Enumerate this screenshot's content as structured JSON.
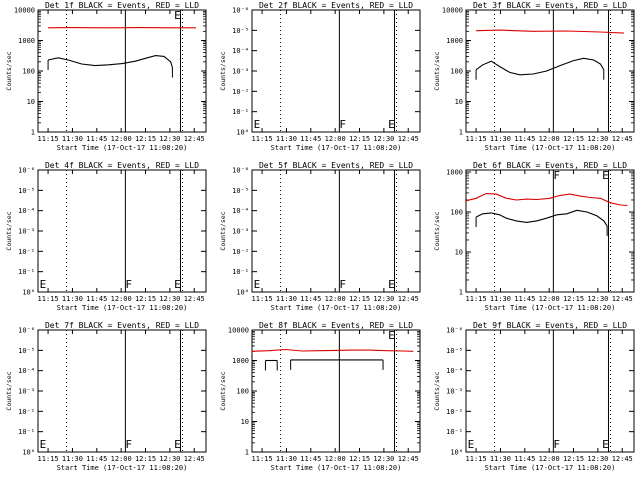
{
  "colors": {
    "events": "#000000",
    "lld": "#dd0000",
    "background": "#ffffff"
  },
  "x_tick_labels": [
    "11:15",
    "11:30",
    "11:45",
    "12:00",
    "12:15",
    "12:30",
    "12:45"
  ],
  "x_axis_label": "Start Time (17-Oct-17 11:08:20)",
  "y_axis_label": "Counts/sec",
  "chart_data": [
    {
      "type": "line",
      "title": "Det 1f BLACK = Events, RED = LLD",
      "xlabel": "Start Time (17-Oct-17 11:08:20)",
      "ylabel": "Counts/sec",
      "y_scale": "log",
      "y_tick_labels": [
        "1",
        "10",
        "100",
        "1000",
        "10000"
      ],
      "y_range_decades": [
        0,
        4
      ],
      "x_range_minutes": [
        0,
        100
      ],
      "markers": [
        {
          "label": "E",
          "minute": 81
        }
      ],
      "series": [
        {
          "color": "red",
          "points": [
            [
              6,
              2600
            ],
            [
              20,
              2650
            ],
            [
              40,
              2600
            ],
            [
              60,
              2650
            ],
            [
              80,
              2600
            ],
            [
              94,
              2600
            ]
          ]
        },
        {
          "color": "black",
          "points": [
            [
              6,
              230
            ],
            [
              12,
              270
            ],
            [
              18,
              230
            ],
            [
              26,
              170
            ],
            [
              34,
              150
            ],
            [
              42,
              160
            ],
            [
              50,
              175
            ],
            [
              58,
              210
            ],
            [
              64,
              260
            ],
            [
              70,
              320
            ],
            [
              75,
              300
            ],
            [
              79,
              200
            ],
            [
              80,
              130
            ]
          ]
        }
      ]
    },
    {
      "type": "line",
      "title": "Det 2f BLACK = Events, RED = LLD",
      "xlabel": "Start Time (17-Oct-17 11:08:20)",
      "ylabel": "Counts/sec",
      "y_scale": "log",
      "y_tick_labels": [
        "10⁰",
        "10⁻¹",
        "10⁻²",
        "10⁻³",
        "10⁻⁴",
        "10⁻⁵",
        "10⁻⁶"
      ],
      "markers": [
        {
          "label": "E",
          "minute": 1
        },
        {
          "label": "F",
          "minute": 52
        },
        {
          "label": "E",
          "minute": 81
        }
      ],
      "series": []
    },
    {
      "type": "line",
      "title": "Det 3f BLACK = Events, RED = LLD",
      "xlabel": "Start Time (17-Oct-17 11:08:20)",
      "ylabel": "Counts/sec",
      "y_scale": "log",
      "y_tick_labels": [
        "1",
        "10",
        "100",
        "1000",
        "10000"
      ],
      "y_range_decades": [
        0,
        4
      ],
      "x_range_minutes": [
        0,
        100
      ],
      "markers": [],
      "series": [
        {
          "color": "red",
          "points": [
            [
              6,
              2100
            ],
            [
              20,
              2200
            ],
            [
              40,
              2000
            ],
            [
              60,
              2050
            ],
            [
              80,
              1900
            ],
            [
              94,
              1750
            ]
          ]
        },
        {
          "color": "black",
          "points": [
            [
              6,
              110
            ],
            [
              10,
              160
            ],
            [
              15,
              210
            ],
            [
              20,
              140
            ],
            [
              26,
              90
            ],
            [
              32,
              75
            ],
            [
              40,
              80
            ],
            [
              48,
              100
            ],
            [
              56,
              150
            ],
            [
              64,
              220
            ],
            [
              70,
              260
            ],
            [
              76,
              230
            ],
            [
              80,
              170
            ],
            [
              82,
              110
            ]
          ]
        }
      ]
    },
    {
      "type": "line",
      "title": "Det 4f BLACK = Events, RED = LLD",
      "xlabel": "Start Time (17-Oct-17 11:08:20)",
      "ylabel": "Counts/sec",
      "y_scale": "log",
      "y_tick_labels": [
        "10⁰",
        "10⁻¹",
        "10⁻²",
        "10⁻³",
        "10⁻⁴",
        "10⁻⁵",
        "10⁻⁶"
      ],
      "markers": [
        {
          "label": "E",
          "minute": 1
        },
        {
          "label": "F",
          "minute": 52
        },
        {
          "label": "E",
          "minute": 81
        }
      ],
      "series": []
    },
    {
      "type": "line",
      "title": "Det 5f BLACK = Events, RED = LLD",
      "xlabel": "Start Time (17-Oct-17 11:08:20)",
      "ylabel": "Counts/sec",
      "y_scale": "log",
      "y_tick_labels": [
        "10⁰",
        "10⁻¹",
        "10⁻²",
        "10⁻³",
        "10⁻⁴",
        "10⁻⁵",
        "10⁻⁶"
      ],
      "markers": [
        {
          "label": "E",
          "minute": 1
        },
        {
          "label": "F",
          "minute": 52
        },
        {
          "label": "E",
          "minute": 81
        }
      ],
      "series": []
    },
    {
      "type": "line",
      "title": "Det 6f BLACK = Events, RED = LLD",
      "xlabel": "Start Time (17-Oct-17 11:08:20)",
      "ylabel": "Counts/sec",
      "y_scale": "log",
      "y_tick_labels": [
        "1",
        "10",
        "100",
        "1000"
      ],
      "y_range_decades": [
        0,
        3.05
      ],
      "x_range_minutes": [
        0,
        100
      ],
      "markers": [
        {
          "label": "F",
          "minute": 52
        },
        {
          "label": "E",
          "minute": 81
        }
      ],
      "series": [
        {
          "color": "red",
          "points": [
            [
              0,
              190
            ],
            [
              6,
              220
            ],
            [
              12,
              290
            ],
            [
              18,
              280
            ],
            [
              24,
              220
            ],
            [
              30,
              200
            ],
            [
              36,
              210
            ],
            [
              42,
              205
            ],
            [
              50,
              220
            ],
            [
              56,
              260
            ],
            [
              62,
              280
            ],
            [
              68,
              250
            ],
            [
              74,
              230
            ],
            [
              80,
              220
            ],
            [
              86,
              170
            ],
            [
              92,
              150
            ],
            [
              96,
              145
            ]
          ]
        },
        {
          "color": "black",
          "points": [
            [
              6,
              75
            ],
            [
              10,
              90
            ],
            [
              15,
              95
            ],
            [
              20,
              85
            ],
            [
              24,
              70
            ],
            [
              30,
              60
            ],
            [
              36,
              55
            ],
            [
              42,
              60
            ],
            [
              48,
              70
            ],
            [
              54,
              85
            ],
            [
              60,
              90
            ],
            [
              66,
              110
            ],
            [
              72,
              100
            ],
            [
              78,
              80
            ],
            [
              82,
              60
            ],
            [
              84,
              45
            ]
          ]
        }
      ]
    },
    {
      "type": "line",
      "title": "Det 7f BLACK = Events, RED = LLD",
      "xlabel": "Start Time (17-Oct-17 11:08:20)",
      "ylabel": "Counts/sec",
      "y_scale": "log",
      "y_tick_labels": [
        "10⁰",
        "10⁻¹",
        "10⁻²",
        "10⁻³",
        "10⁻⁴",
        "10⁻⁵",
        "10⁻⁶"
      ],
      "markers": [
        {
          "label": "E",
          "minute": 1
        },
        {
          "label": "F",
          "minute": 52
        },
        {
          "label": "E",
          "minute": 81
        }
      ],
      "series": []
    },
    {
      "type": "line",
      "title": "Det 8f BLACK = Events, RED = LLD",
      "xlabel": "Start Time (17-Oct-17 11:08:20)",
      "ylabel": "Counts/sec",
      "y_scale": "log",
      "y_tick_labels": [
        "1",
        "10",
        "100",
        "1000",
        "10000"
      ],
      "y_range_decades": [
        0,
        4
      ],
      "x_range_minutes": [
        0,
        100
      ],
      "markers": [
        {
          "label": "E",
          "minute": 81
        }
      ],
      "series": [
        {
          "color": "red",
          "points": [
            [
              0,
              2000
            ],
            [
              10,
              2100
            ],
            [
              20,
              2300
            ],
            [
              30,
              2050
            ],
            [
              40,
              2100
            ],
            [
              50,
              2150
            ],
            [
              60,
              2200
            ],
            [
              70,
              2200
            ],
            [
              80,
              2100
            ],
            [
              90,
              2050
            ],
            [
              96,
              2000
            ]
          ]
        },
        {
          "color": "black",
          "points": [
            [
              8,
              1000
            ],
            [
              15,
              1000
            ]
          ]
        },
        {
          "color": "black",
          "points": [
            [
              23,
              1050
            ],
            [
              40,
              1050
            ],
            [
              60,
              1050
            ],
            [
              78,
              1050
            ]
          ]
        }
      ]
    },
    {
      "type": "line",
      "title": "Det 9f BLACK = Events, RED = LLD",
      "xlabel": "Start Time (17-Oct-17 11:08:20)",
      "ylabel": "Counts/sec",
      "y_scale": "log",
      "y_tick_labels": [
        "10⁰",
        "10⁻¹",
        "10⁻²",
        "10⁻³",
        "10⁻⁴",
        "10⁻⁵",
        "10⁻⁶"
      ],
      "markers": [
        {
          "label": "E",
          "minute": 1
        },
        {
          "label": "F",
          "minute": 52
        },
        {
          "label": "E",
          "minute": 81
        }
      ],
      "series": []
    }
  ]
}
